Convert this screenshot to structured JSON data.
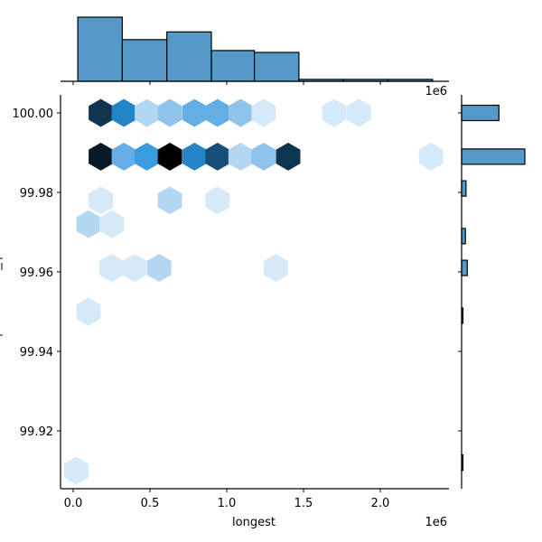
{
  "chart_data": {
    "type": "hexbin-jointplot",
    "title": "",
    "xlabel": "longest",
    "ylabel": "",
    "x_offset_label": "1e6",
    "top_marginal_offset_label": "1e6",
    "xlim": [
      -0.08,
      2.44
    ],
    "ylim": [
      99.905,
      100.005
    ],
    "x_ticks": [
      {
        "value": 0.0,
        "label": "0.0"
      },
      {
        "value": 0.5,
        "label": "0.5"
      },
      {
        "value": 1.0,
        "label": "1.0"
      },
      {
        "value": 1.5,
        "label": "1.5"
      },
      {
        "value": 2.0,
        "label": "2.0"
      }
    ],
    "y_ticks": [
      {
        "value": 100.0,
        "label": "100.00"
      },
      {
        "value": 99.98,
        "label": "99.98"
      },
      {
        "value": 99.96,
        "label": "99.96"
      },
      {
        "value": 99.94,
        "label": "99.94"
      },
      {
        "value": 99.92,
        "label": "99.92"
      }
    ],
    "colormap": "Blues (light to dark)",
    "hexbins": [
      {
        "x": 0.18,
        "y": 100.0,
        "color": "#0f344f"
      },
      {
        "x": 0.33,
        "y": 100.0,
        "color": "#2484c8"
      },
      {
        "x": 0.48,
        "y": 100.0,
        "color": "#b3d7f1"
      },
      {
        "x": 0.63,
        "y": 100.0,
        "color": "#8ec3ec"
      },
      {
        "x": 0.79,
        "y": 100.0,
        "color": "#64aee5"
      },
      {
        "x": 0.94,
        "y": 100.0,
        "color": "#64aee5"
      },
      {
        "x": 1.09,
        "y": 100.0,
        "color": "#8ec3ec"
      },
      {
        "x": 1.24,
        "y": 100.0,
        "color": "#d6e9f8"
      },
      {
        "x": 1.7,
        "y": 100.0,
        "color": "#d6e9f8"
      },
      {
        "x": 1.86,
        "y": 100.0,
        "color": "#d6e9f8"
      },
      {
        "x": 0.18,
        "y": 99.989,
        "color": "#071826"
      },
      {
        "x": 0.33,
        "y": 99.989,
        "color": "#64aee5"
      },
      {
        "x": 0.48,
        "y": 99.989,
        "color": "#3a9be0"
      },
      {
        "x": 0.63,
        "y": 99.989,
        "color": "#000000"
      },
      {
        "x": 0.79,
        "y": 99.989,
        "color": "#2484c8"
      },
      {
        "x": 0.94,
        "y": 99.989,
        "color": "#174e78"
      },
      {
        "x": 1.09,
        "y": 99.989,
        "color": "#b3d7f1"
      },
      {
        "x": 1.24,
        "y": 99.989,
        "color": "#8ec3ec"
      },
      {
        "x": 1.4,
        "y": 99.989,
        "color": "#0f344f"
      },
      {
        "x": 2.33,
        "y": 99.989,
        "color": "#d6e9f8"
      },
      {
        "x": 0.18,
        "y": 99.978,
        "color": "#d6e9f8"
      },
      {
        "x": 0.63,
        "y": 99.978,
        "color": "#b3d7f1"
      },
      {
        "x": 0.94,
        "y": 99.978,
        "color": "#d6e9f8"
      },
      {
        "x": 0.1,
        "y": 99.972,
        "color": "#b3d7f1"
      },
      {
        "x": 0.25,
        "y": 99.972,
        "color": "#d6e9f8"
      },
      {
        "x": 0.25,
        "y": 99.961,
        "color": "#d6e9f8"
      },
      {
        "x": 0.4,
        "y": 99.961,
        "color": "#d6e9f8"
      },
      {
        "x": 0.56,
        "y": 99.961,
        "color": "#b3d7f1"
      },
      {
        "x": 1.32,
        "y": 99.961,
        "color": "#d6e9f8"
      },
      {
        "x": 0.1,
        "y": 99.95,
        "color": "#d6e9f8"
      },
      {
        "x": 0.02,
        "y": 99.91,
        "color": "#d6e9f8"
      }
    ],
    "top_marginal_histogram": {
      "bin_edges_1e6": [
        0.03,
        0.32,
        0.61,
        0.9,
        1.18,
        1.47,
        1.76,
        2.05,
        2.34
      ],
      "relative_heights": [
        1.0,
        0.65,
        0.77,
        0.48,
        0.45,
        0.03,
        0.03,
        0.03
      ],
      "color": "#5499c7"
    },
    "right_marginal_histogram": {
      "bins": [
        {
          "y": 100.0,
          "relative_width": 0.59
        },
        {
          "y": 99.989,
          "relative_width": 1.0
        },
        {
          "y": 99.981,
          "relative_width": 0.07
        },
        {
          "y": 99.969,
          "relative_width": 0.06
        },
        {
          "y": 99.961,
          "relative_width": 0.09
        },
        {
          "y": 99.949,
          "relative_width": 0.02
        },
        {
          "y": 99.912,
          "relative_width": 0.02
        }
      ],
      "color": "#5499c7"
    }
  }
}
